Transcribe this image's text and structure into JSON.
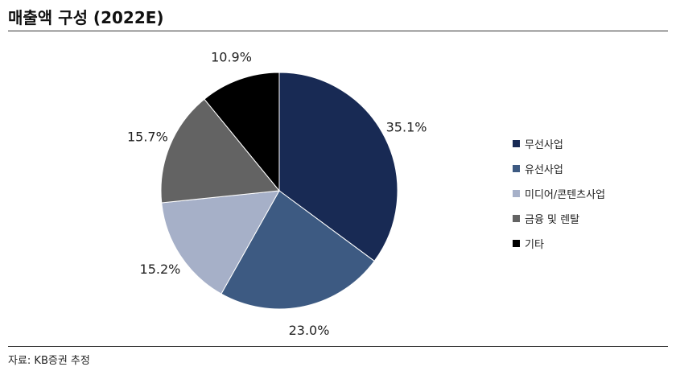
{
  "header": {
    "title": "매출액 구성 (2022E)"
  },
  "footer": {
    "source": "자료: KB증권 추정"
  },
  "chart_data": {
    "type": "pie",
    "title": "매출액 구성 (2022E)",
    "categories": [
      "무선사업",
      "유선사업",
      "미디어/콘텐츠사업",
      "금융 및 렌탈",
      "기타"
    ],
    "values": [
      35.1,
      23.0,
      15.2,
      15.7,
      10.9
    ],
    "value_labels": [
      "35.1%",
      "23.0%",
      "15.2%",
      "15.7%",
      "10.9%"
    ],
    "colors": [
      "#182a54",
      "#3d5a82",
      "#a6b0c8",
      "#636363",
      "#000000"
    ],
    "start_angle": "12 o'clock",
    "direction": "clockwise",
    "legend_position": "right"
  }
}
